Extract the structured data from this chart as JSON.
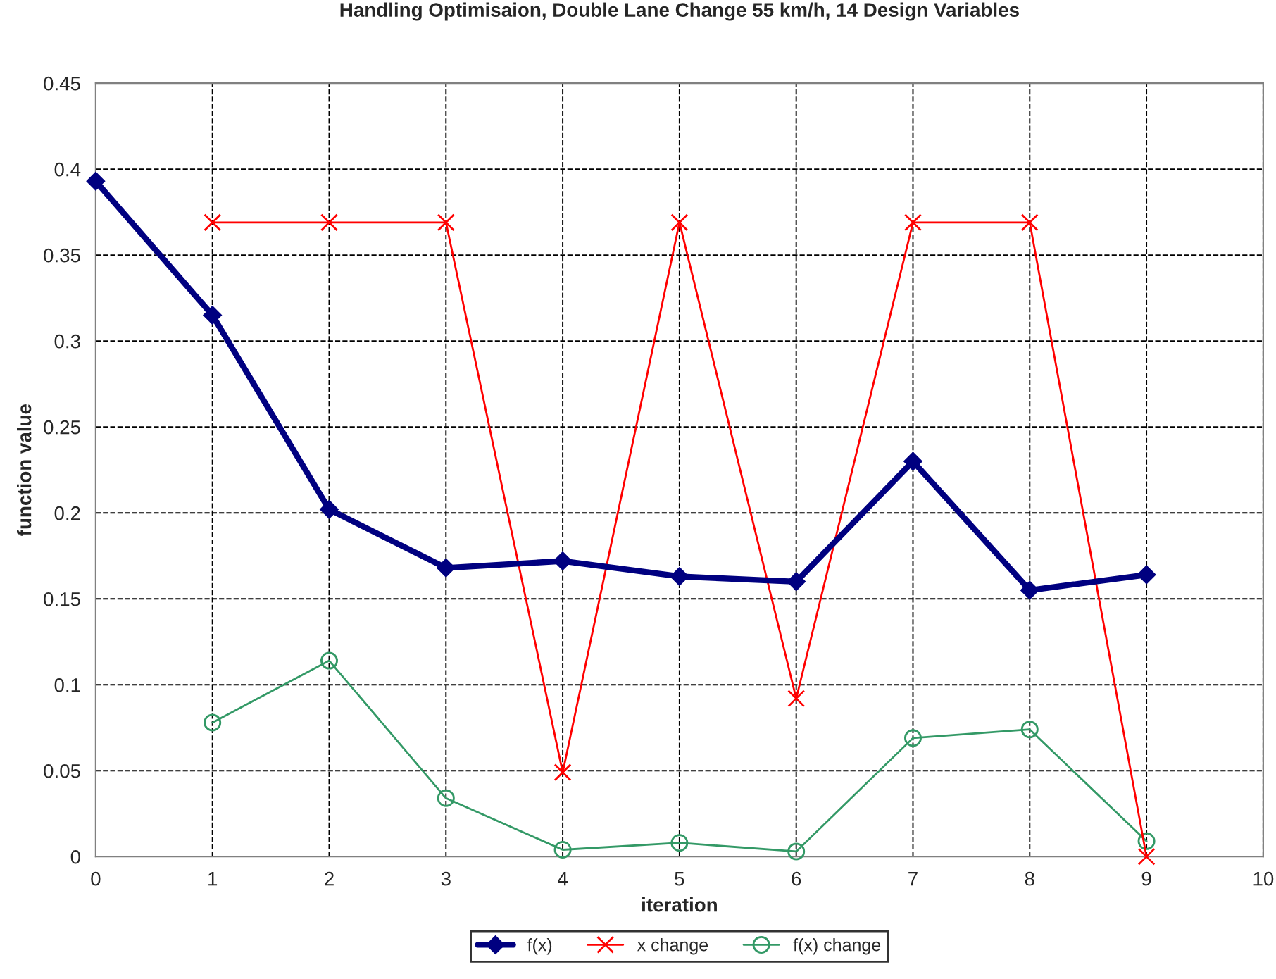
{
  "chart_data": {
    "type": "line",
    "title": "Handling Optimisaion, Double Lane Change 55 km/h, 14 Design Variables",
    "xlabel": "iteration",
    "ylabel": "function value",
    "xlim": [
      0,
      10
    ],
    "xticks": [
      0,
      1,
      2,
      3,
      4,
      5,
      6,
      7,
      8,
      9,
      10
    ],
    "ylim": [
      0,
      0.45
    ],
    "yticks": [
      0,
      0.05,
      0.1,
      0.15,
      0.2,
      0.25,
      0.3,
      0.35,
      0.4,
      0.45
    ],
    "grid": true,
    "legend": "bottom",
    "series": [
      {
        "name": "f(x)",
        "color": "#000080",
        "marker": "diamond",
        "x": [
          0,
          1,
          2,
          3,
          4,
          5,
          6,
          7,
          8,
          9
        ],
        "values": [
          0.393,
          0.315,
          0.202,
          0.168,
          0.172,
          0.163,
          0.16,
          0.23,
          0.155,
          0.164
        ]
      },
      {
        "name": "x change",
        "color": "#ff0000",
        "marker": "cross",
        "x": [
          1,
          2,
          3,
          4,
          5,
          6,
          7,
          8,
          9
        ],
        "values": [
          0.369,
          0.369,
          0.369,
          0.049,
          0.369,
          0.092,
          0.369,
          0.369,
          0
        ]
      },
      {
        "name": "f(x) change",
        "color": "#339966",
        "marker": "circle",
        "x": [
          1,
          2,
          3,
          4,
          5,
          6,
          7,
          8,
          9
        ],
        "values": [
          0.078,
          0.114,
          0.034,
          0.004,
          0.008,
          0.003,
          0.069,
          0.074,
          0.009
        ]
      }
    ]
  }
}
